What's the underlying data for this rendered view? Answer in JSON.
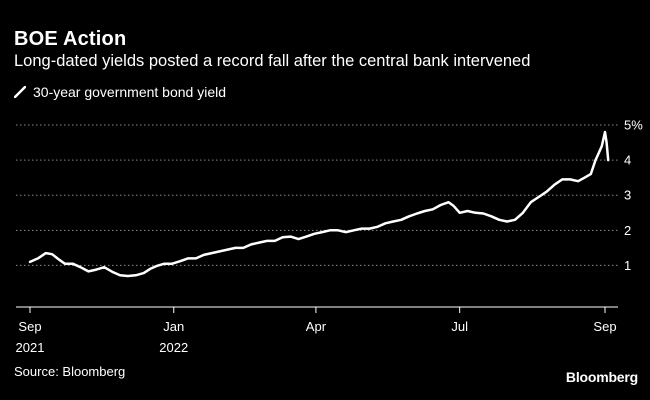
{
  "header": {
    "title": "BOE Action",
    "subtitle": "Long-dated yields posted a record fall after the central bank intervened"
  },
  "footer": {
    "source": "Source: Bloomberg",
    "brand": "Bloomberg"
  },
  "colors": {
    "background": "#000000",
    "line": "#ffffff",
    "grid": "#8a8a8a"
  },
  "chart_data": {
    "type": "line",
    "title": "BOE Action",
    "subtitle": "Long-dated yields posted a record fall after the central bank intervened",
    "xlabel": "",
    "ylabel": "",
    "ylim": [
      0.3,
      5
    ],
    "xlim": [
      0,
      393
    ],
    "legend": "top-left",
    "grid": true,
    "x_ticks": [
      {
        "day": 0,
        "label": "Sep",
        "sublabel": "2021"
      },
      {
        "day": 91,
        "label": "Jan",
        "sublabel": "2022"
      },
      {
        "day": 181,
        "label": "Apr",
        "sublabel": ""
      },
      {
        "day": 272,
        "label": "Jul",
        "sublabel": ""
      },
      {
        "day": 364,
        "label": "Sep",
        "sublabel": ""
      }
    ],
    "y_ticks": [
      {
        "value": 1,
        "label": "1"
      },
      {
        "value": 2,
        "label": "2"
      },
      {
        "value": 3,
        "label": "3"
      },
      {
        "value": 4,
        "label": "4"
      },
      {
        "value": 5,
        "label": "5%"
      }
    ],
    "series": [
      {
        "name": "30-year government bond yield",
        "x": [
          0,
          5,
          10,
          14,
          18,
          22,
          27,
          32,
          37,
          42,
          47,
          52,
          57,
          62,
          67,
          72,
          76,
          80,
          85,
          90,
          95,
          100,
          105,
          110,
          115,
          120,
          125,
          130,
          135,
          140,
          145,
          150,
          155,
          160,
          165,
          170,
          175,
          180,
          185,
          190,
          195,
          200,
          205,
          210,
          215,
          220,
          225,
          230,
          235,
          240,
          245,
          250,
          255,
          260,
          265,
          268,
          272,
          277,
          282,
          287,
          292,
          297,
          302,
          307,
          312,
          317,
          322,
          327,
          332,
          337,
          342,
          347,
          351,
          355,
          358,
          360,
          362,
          364,
          365,
          366
        ],
        "values": [
          1.1,
          1.2,
          1.35,
          1.32,
          1.18,
          1.05,
          1.05,
          0.95,
          0.83,
          0.88,
          0.95,
          0.82,
          0.72,
          0.7,
          0.72,
          0.78,
          0.9,
          0.98,
          1.05,
          1.05,
          1.12,
          1.2,
          1.2,
          1.3,
          1.35,
          1.4,
          1.45,
          1.5,
          1.5,
          1.6,
          1.65,
          1.7,
          1.7,
          1.8,
          1.82,
          1.75,
          1.82,
          1.9,
          1.95,
          2.0,
          2.0,
          1.95,
          2.0,
          2.05,
          2.05,
          2.1,
          2.2,
          2.25,
          2.3,
          2.4,
          2.48,
          2.55,
          2.6,
          2.72,
          2.8,
          2.7,
          2.5,
          2.55,
          2.5,
          2.48,
          2.4,
          2.3,
          2.25,
          2.3,
          2.5,
          2.8,
          2.95,
          3.1,
          3.3,
          3.45,
          3.45,
          3.4,
          3.5,
          3.6,
          4.0,
          4.2,
          4.4,
          4.8,
          4.5,
          4.0
        ]
      }
    ]
  }
}
